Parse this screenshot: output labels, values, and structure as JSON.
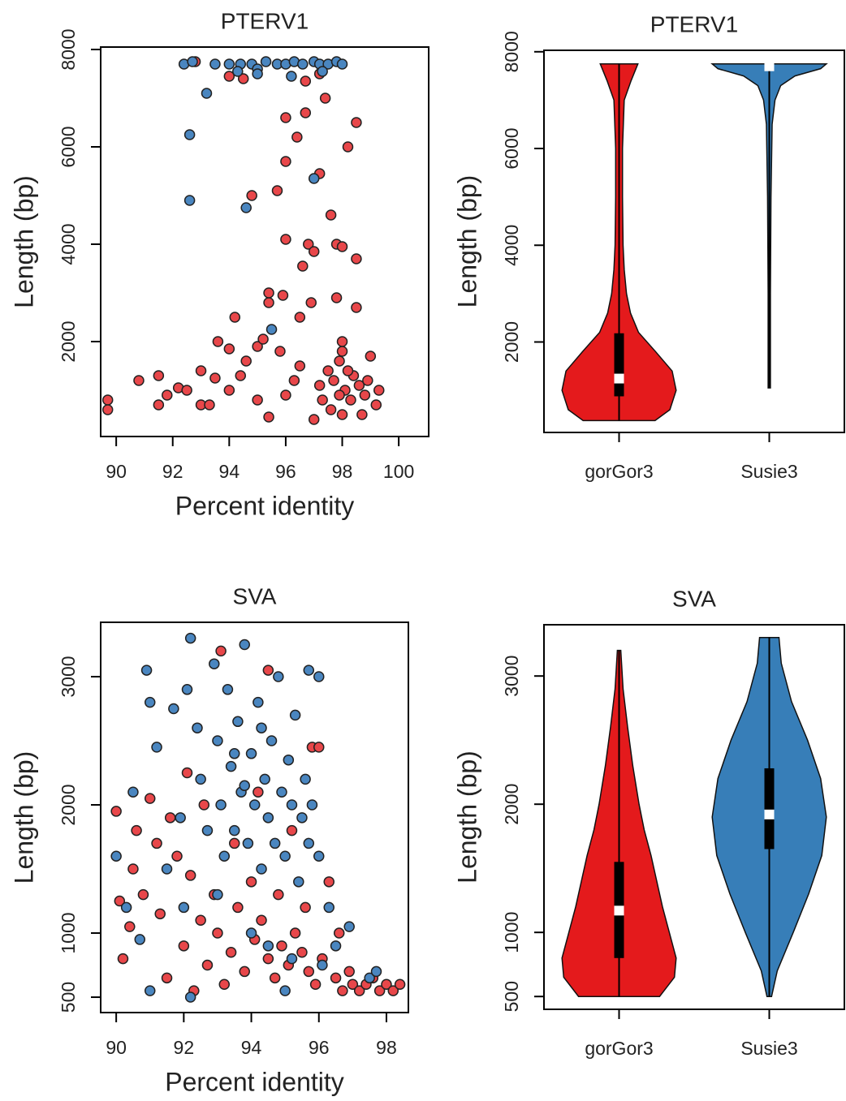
{
  "chart_data": [
    {
      "type": "scatter",
      "title": "PTERV1",
      "x_label": "Percent identity",
      "y_label": "Length (bp)",
      "xlim": [
        89.45,
        101.06
      ],
      "ylim": [
        50,
        8050
      ],
      "xticks": [
        90,
        92,
        94,
        96,
        98,
        100
      ],
      "yticks": [
        2000,
        4000,
        6000,
        8000
      ],
      "series": [
        {
          "color": "#e8474a",
          "x": [
            89.7,
            89.7,
            90.8,
            91.5,
            91.5,
            91.8,
            92.2,
            92.5,
            93.0,
            93.0,
            93.3,
            93.5,
            93.6,
            94.0,
            94.2,
            94.4,
            94.6,
            95.0,
            95.2,
            95.4,
            95.4,
            95.4,
            95.8,
            95.9,
            96.0,
            96.0,
            96.0,
            95.7,
            94.8,
            96.5,
            96.6,
            96.7,
            96.8,
            96.9,
            97.0,
            97.2,
            97.4,
            97.6,
            97.8,
            98.0,
            98.2,
            98.5,
            98.5,
            97.0,
            97.5,
            97.7,
            97.9,
            98.0,
            98.1,
            98.3,
            98.4,
            98.5,
            98.6,
            98.8,
            99.0,
            99.2,
            99.3,
            97.3,
            97.6,
            98.0,
            98.7,
            96.3,
            96.0,
            95.0,
            97.2,
            98.2,
            98.9,
            97.9,
            96.5,
            97.2,
            96.7,
            94.0,
            94.5,
            92.8,
            98.0,
            97.8,
            96.4,
            94.0
          ],
          "y": [
            800,
            600,
            1200,
            1300,
            700,
            900,
            1050,
            1000,
            1400,
            700,
            700,
            1250,
            2000,
            1850,
            2500,
            1300,
            1600,
            1900,
            2050,
            2800,
            3000,
            450,
            1800,
            2950,
            6600,
            4100,
            5700,
            5100,
            5000,
            2500,
            3550,
            6700,
            4000,
            2800,
            3850,
            5450,
            7000,
            4600,
            4000,
            3950,
            6000,
            3700,
            6500,
            400,
            1400,
            1200,
            1600,
            1800,
            1000,
            800,
            1300,
            2700,
            1100,
            900,
            1700,
            700,
            1000,
            800,
            600,
            500,
            500,
            1200,
            900,
            800,
            1100,
            1400,
            1200,
            900,
            1500,
            7500,
            7350,
            7450,
            7400,
            7750,
            2000,
            2900,
            6200,
            1000
          ]
        },
        {
          "color": "#4a86c0",
          "x": [
            92.4,
            92.7,
            93.2,
            93.5,
            94.0,
            94.4,
            94.8,
            95.0,
            95.3,
            95.7,
            96.0,
            96.3,
            96.6,
            97.0,
            97.2,
            97.5,
            97.8,
            98.0,
            95.0,
            96.2,
            94.3,
            92.6,
            92.6,
            94.6,
            95.5,
            97.0,
            97.3
          ],
          "y": [
            7700,
            7750,
            7100,
            7700,
            7700,
            7700,
            7700,
            7600,
            7750,
            7700,
            7700,
            7750,
            7700,
            7750,
            7700,
            7700,
            7750,
            7700,
            7500,
            7450,
            7550,
            6250,
            4900,
            4750,
            2250,
            5350,
            7550
          ]
        }
      ]
    },
    {
      "type": "violin",
      "title": "PTERV1",
      "y_label": "Length (bp)",
      "categories": [
        "gorGor3",
        "Susie3"
      ],
      "ylim": [
        130,
        8030
      ],
      "yticks": [
        2000,
        4000,
        6000,
        8000
      ],
      "series": [
        {
          "color": "#e41a1c",
          "min": 375,
          "q1": 877,
          "median": 1244,
          "q3": 2180,
          "max": 7750,
          "density_y": [
            375,
            600,
            1000,
            1400,
            1800,
            2200,
            2600,
            3000,
            3500,
            4000,
            5000,
            6000,
            7000,
            7400,
            7750
          ],
          "density": [
            0.63,
            0.89,
            1,
            0.93,
            0.64,
            0.34,
            0.2,
            0.13,
            0.09,
            0.07,
            0.06,
            0.06,
            0.09,
            0.21,
            0.33
          ]
        },
        {
          "color": "#377eb8",
          "min": 1050,
          "q1": 7680,
          "median": 7700,
          "q3": 7730,
          "max": 7750,
          "density_y": [
            1050,
            3000,
            5000,
            6500,
            7000,
            7300,
            7500,
            7650,
            7750
          ],
          "density": [
            0.02,
            0.02,
            0.03,
            0.05,
            0.1,
            0.2,
            0.45,
            0.9,
            1
          ]
        }
      ]
    },
    {
      "type": "scatter",
      "title": "SVA",
      "x_label": "Percent identity",
      "y_label": "Length (bp)",
      "xlim": [
        89.54,
        98.65
      ],
      "ylim": [
        380,
        3424
      ],
      "xticks": [
        90,
        92,
        94,
        96,
        98
      ],
      "yticks": [
        500,
        1000,
        2000,
        3000
      ],
      "series": [
        {
          "color": "#e8474a",
          "x": [
            90.0,
            90.1,
            90.2,
            90.4,
            90.5,
            90.6,
            90.8,
            91.0,
            91.2,
            91.3,
            91.5,
            91.8,
            92.0,
            92.2,
            92.3,
            92.5,
            92.7,
            92.9,
            93.0,
            93.2,
            93.4,
            93.6,
            93.8,
            94.0,
            94.1,
            94.3,
            94.5,
            94.7,
            94.9,
            95.1,
            95.3,
            95.5,
            95.7,
            95.9,
            96.1,
            96.3,
            96.5,
            96.7,
            96.9,
            97.0,
            97.2,
            97.4,
            97.6,
            97.8,
            98.0,
            98.2,
            98.4,
            95.8,
            96.0,
            93.1,
            94.5,
            95.2,
            92.1,
            91.6,
            94.8,
            93.5,
            95.6,
            96.6,
            92.6,
            94.2
          ],
          "y": [
            1950,
            1250,
            800,
            1050,
            1500,
            1800,
            1300,
            2050,
            1700,
            1150,
            650,
            1600,
            900,
            1450,
            550,
            1100,
            750,
            1300,
            1000,
            600,
            850,
            1200,
            700,
            1400,
            950,
            1100,
            800,
            650,
            900,
            750,
            1000,
            850,
            700,
            600,
            800,
            1400,
            650,
            550,
            700,
            600,
            550,
            600,
            650,
            550,
            600,
            550,
            600,
            2450,
            2450,
            3200,
            3050,
            1800,
            2250,
            1900,
            1300,
            1700,
            1200,
            1000,
            2000,
            2100
          ]
        },
        {
          "color": "#4a86c0",
          "x": [
            90.0,
            90.3,
            90.5,
            90.7,
            90.9,
            91.0,
            91.0,
            91.2,
            91.5,
            91.7,
            91.9,
            92.1,
            92.2,
            92.4,
            92.5,
            92.7,
            92.9,
            93.0,
            93.1,
            93.2,
            93.3,
            93.4,
            93.5,
            93.6,
            93.7,
            93.8,
            93.9,
            94.0,
            94.1,
            94.2,
            94.3,
            94.4,
            94.5,
            94.6,
            94.7,
            94.8,
            94.9,
            95.0,
            95.1,
            95.2,
            95.3,
            95.4,
            95.5,
            95.6,
            95.7,
            95.8,
            96.0,
            95.7,
            96.0,
            96.3,
            96.5,
            96.9,
            97.5,
            97.7,
            92.0,
            93.0,
            94.0,
            94.5,
            95.2,
            96.1,
            92.2,
            95.0,
            93.8,
            94.3,
            93.5
          ],
          "y": [
            1600,
            1200,
            2100,
            950,
            3050,
            2800,
            550,
            2450,
            1500,
            2750,
            1900,
            2900,
            3300,
            2600,
            2200,
            1800,
            3100,
            2500,
            2000,
            1600,
            2900,
            2300,
            1800,
            2650,
            2100,
            3250,
            1700,
            2400,
            2000,
            2800,
            1500,
            2200,
            1900,
            2500,
            1700,
            3000,
            2100,
            1600,
            2350,
            2000,
            2700,
            1400,
            1900,
            2200,
            1700,
            2000,
            3000,
            3050,
            1600,
            1200,
            900,
            1050,
            650,
            700,
            1200,
            1300,
            1000,
            900,
            800,
            750,
            500,
            550,
            2150,
            2600,
            2400
          ]
        }
      ]
    },
    {
      "type": "violin",
      "title": "SVA",
      "y_label": "Length (bp)",
      "categories": [
        "gorGor3",
        "Susie3"
      ],
      "ylim": [
        400,
        3400
      ],
      "yticks": [
        500,
        1000,
        2000,
        3000
      ],
      "series": [
        {
          "color": "#e41a1c",
          "min": 500,
          "q1": 800,
          "median": 1170,
          "q3": 1550,
          "max": 3200,
          "density_y": [
            500,
            650,
            800,
            1000,
            1200,
            1400,
            1600,
            1800,
            2000,
            2300,
            2600,
            2900,
            3200
          ],
          "density": [
            0.71,
            0.97,
            1,
            0.88,
            0.76,
            0.66,
            0.56,
            0.44,
            0.35,
            0.24,
            0.15,
            0.07,
            0.03
          ]
        },
        {
          "color": "#377eb8",
          "min": 500,
          "q1": 1650,
          "median": 1920,
          "q3": 2280,
          "max": 3300,
          "density_y": [
            500,
            700,
            1000,
            1300,
            1600,
            1900,
            2200,
            2500,
            2800,
            3100,
            3300
          ],
          "density": [
            0.04,
            0.14,
            0.42,
            0.69,
            0.92,
            1,
            0.9,
            0.67,
            0.39,
            0.21,
            0.17
          ]
        }
      ]
    }
  ]
}
